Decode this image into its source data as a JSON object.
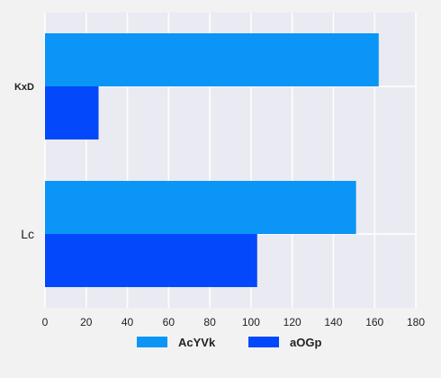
{
  "chart_data": {
    "type": "bar",
    "orientation": "horizontal",
    "categories": [
      "KxD",
      "Lc"
    ],
    "series": [
      {
        "name": "AcYVk",
        "values": [
          162,
          151
        ],
        "color": "#0a95f7"
      },
      {
        "name": "aOGp",
        "values": [
          26,
          103
        ],
        "color": "#0448fb"
      }
    ],
    "x_ticks": [
      "0",
      "20",
      "40",
      "60",
      "80",
      "100",
      "120",
      "140",
      "160",
      "180"
    ],
    "xlim": [
      0,
      180
    ],
    "grid": true,
    "legend_position": "bottom",
    "plot_background": "#eaeaf2"
  }
}
